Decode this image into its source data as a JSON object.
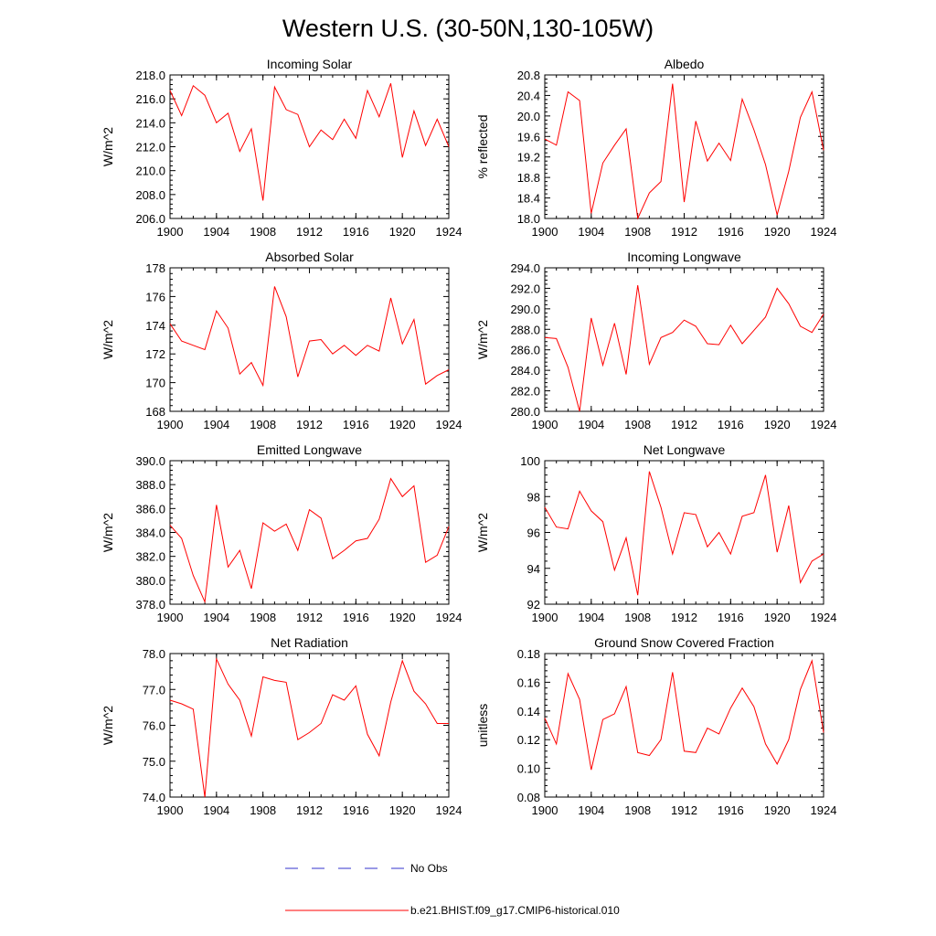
{
  "figure": {
    "title": "Western U.S. (30-50N,130-105W)",
    "legend": [
      {
        "label": "No Obs",
        "color": "#3333cc",
        "style": "dashed"
      },
      {
        "label": "b.e21.BHIST.f09_g17.CMIP6-historical.010",
        "color": "#ff0000",
        "style": "solid"
      }
    ]
  },
  "chart_data": [
    {
      "type": "line",
      "title": "Incoming Solar",
      "ylabel": "W/m^2",
      "xlim": [
        1900,
        1924
      ],
      "ylim": [
        206,
        218
      ],
      "yticks": [
        "206.0",
        "208.0",
        "210.0",
        "212.0",
        "214.0",
        "216.0",
        "218.0"
      ],
      "xticks": [
        "1900",
        "1904",
        "1908",
        "1912",
        "1916",
        "1920",
        "1924"
      ],
      "color": "#ff0000",
      "x": [
        1900,
        1901,
        1902,
        1903,
        1904,
        1905,
        1906,
        1907,
        1908,
        1909,
        1910,
        1911,
        1912,
        1913,
        1914,
        1915,
        1916,
        1917,
        1918,
        1919,
        1920,
        1921,
        1922,
        1923,
        1924
      ],
      "y": [
        216.7,
        214.6,
        217.1,
        216.3,
        214.0,
        214.8,
        211.6,
        213.5,
        207.5,
        217.0,
        215.1,
        214.7,
        212.0,
        213.4,
        212.6,
        214.3,
        212.7,
        216.7,
        214.5,
        217.3,
        211.1,
        215.0,
        212.1,
        214.3,
        212.0
      ]
    },
    {
      "type": "line",
      "title": "Albedo",
      "ylabel": "% reflected",
      "xlim": [
        1900,
        1924
      ],
      "ylim": [
        18.0,
        20.8
      ],
      "yticks": [
        "18.0",
        "18.4",
        "18.8",
        "19.2",
        "19.6",
        "20.0",
        "20.4",
        "20.8"
      ],
      "xticks": [
        "1900",
        "1904",
        "1908",
        "1912",
        "1916",
        "1920",
        "1924"
      ],
      "color": "#ff0000",
      "x": [
        1900,
        1901,
        1902,
        1903,
        1904,
        1905,
        1906,
        1907,
        1908,
        1909,
        1910,
        1911,
        1912,
        1913,
        1914,
        1915,
        1916,
        1917,
        1918,
        1919,
        1920,
        1921,
        1922,
        1923,
        1924
      ],
      "y": [
        19.55,
        19.43,
        20.47,
        20.3,
        18.1,
        19.08,
        19.43,
        19.75,
        18.0,
        18.5,
        18.72,
        20.63,
        18.32,
        19.9,
        19.12,
        19.47,
        19.13,
        20.33,
        19.73,
        19.05,
        18.07,
        18.92,
        19.97,
        20.47,
        19.33
      ]
    },
    {
      "type": "line",
      "title": "Absorbed Solar",
      "ylabel": "W/m^2",
      "xlim": [
        1900,
        1924
      ],
      "ylim": [
        168,
        178
      ],
      "yticks": [
        "168",
        "170",
        "172",
        "174",
        "176",
        "178"
      ],
      "xticks": [
        "1900",
        "1904",
        "1908",
        "1912",
        "1916",
        "1920",
        "1924"
      ],
      "color": "#ff0000",
      "x": [
        1900,
        1901,
        1902,
        1903,
        1904,
        1905,
        1906,
        1907,
        1908,
        1909,
        1910,
        1911,
        1912,
        1913,
        1914,
        1915,
        1916,
        1917,
        1918,
        1919,
        1920,
        1921,
        1922,
        1923,
        1924
      ],
      "y": [
        174.1,
        172.9,
        172.6,
        172.3,
        175.0,
        173.8,
        170.6,
        171.4,
        169.8,
        176.7,
        174.6,
        170.4,
        172.9,
        173.0,
        172.0,
        172.6,
        171.9,
        172.6,
        172.2,
        175.9,
        172.7,
        174.4,
        169.9,
        170.5,
        170.9
      ]
    },
    {
      "type": "line",
      "title": "Incoming Longwave",
      "ylabel": "W/m^2",
      "xlim": [
        1900,
        1924
      ],
      "ylim": [
        280,
        294
      ],
      "yticks": [
        "280.0",
        "282.0",
        "284.0",
        "286.0",
        "288.0",
        "290.0",
        "292.0",
        "294.0"
      ],
      "xticks": [
        "1900",
        "1904",
        "1908",
        "1912",
        "1916",
        "1920",
        "1924"
      ],
      "color": "#ff0000",
      "x": [
        1900,
        1901,
        1902,
        1903,
        1904,
        1905,
        1906,
        1907,
        1908,
        1909,
        1910,
        1911,
        1912,
        1913,
        1914,
        1915,
        1916,
        1917,
        1918,
        1919,
        1920,
        1921,
        1922,
        1923,
        1924
      ],
      "y": [
        287.2,
        287.1,
        284.3,
        280.0,
        289.1,
        284.5,
        288.6,
        283.6,
        292.3,
        284.6,
        287.2,
        287.7,
        288.9,
        288.3,
        286.6,
        286.5,
        288.4,
        286.6,
        287.9,
        289.2,
        292.0,
        290.5,
        288.3,
        287.7,
        289.5
      ]
    },
    {
      "type": "line",
      "title": "Emitted Longwave",
      "ylabel": "W/m^2",
      "xlim": [
        1900,
        1924
      ],
      "ylim": [
        378,
        390
      ],
      "yticks": [
        "378.0",
        "380.0",
        "382.0",
        "384.0",
        "386.0",
        "388.0",
        "390.0"
      ],
      "xticks": [
        "1900",
        "1904",
        "1908",
        "1912",
        "1916",
        "1920",
        "1924"
      ],
      "color": "#ff0000",
      "x": [
        1900,
        1901,
        1902,
        1903,
        1904,
        1905,
        1906,
        1907,
        1908,
        1909,
        1910,
        1911,
        1912,
        1913,
        1914,
        1915,
        1916,
        1917,
        1918,
        1919,
        1920,
        1921,
        1922,
        1923,
        1924
      ],
      "y": [
        384.6,
        383.5,
        380.4,
        378.2,
        386.3,
        381.1,
        382.5,
        379.3,
        384.8,
        384.1,
        384.7,
        382.5,
        385.9,
        385.2,
        381.8,
        382.5,
        383.3,
        383.5,
        385.1,
        388.5,
        387.0,
        387.9,
        381.5,
        382.1,
        384.5
      ]
    },
    {
      "type": "line",
      "title": "Net Longwave",
      "ylabel": "W/m^2",
      "xlim": [
        1900,
        1924
      ],
      "ylim": [
        92,
        100
      ],
      "yticks": [
        "92",
        "94",
        "96",
        "98",
        "100"
      ],
      "xticks": [
        "1900",
        "1904",
        "1908",
        "1912",
        "1916",
        "1920",
        "1924"
      ],
      "color": "#ff0000",
      "x": [
        1900,
        1901,
        1902,
        1903,
        1904,
        1905,
        1906,
        1907,
        1908,
        1909,
        1910,
        1911,
        1912,
        1913,
        1914,
        1915,
        1916,
        1917,
        1918,
        1919,
        1920,
        1921,
        1922,
        1923,
        1924
      ],
      "y": [
        97.4,
        96.3,
        96.2,
        98.3,
        97.2,
        96.6,
        93.9,
        95.7,
        92.5,
        99.4,
        97.4,
        94.8,
        97.1,
        97.0,
        95.2,
        96.0,
        94.8,
        96.9,
        97.1,
        99.2,
        94.9,
        97.5,
        93.2,
        94.4,
        94.8
      ]
    },
    {
      "type": "line",
      "title": "Net Radiation",
      "ylabel": "W/m^2",
      "xlim": [
        1900,
        1924
      ],
      "ylim": [
        74,
        78
      ],
      "yticks": [
        "74.0",
        "75.0",
        "76.0",
        "77.0",
        "78.0"
      ],
      "xticks": [
        "1900",
        "1904",
        "1908",
        "1912",
        "1916",
        "1920",
        "1924"
      ],
      "color": "#ff0000",
      "x": [
        1900,
        1901,
        1902,
        1903,
        1904,
        1905,
        1906,
        1907,
        1908,
        1909,
        1910,
        1911,
        1912,
        1913,
        1914,
        1915,
        1916,
        1917,
        1918,
        1919,
        1920,
        1921,
        1922,
        1923,
        1924
      ],
      "y": [
        76.7,
        76.6,
        76.45,
        74.0,
        77.85,
        77.15,
        76.7,
        75.7,
        77.35,
        77.25,
        77.2,
        75.6,
        75.8,
        76.05,
        76.85,
        76.7,
        77.1,
        75.75,
        75.15,
        76.65,
        77.8,
        76.95,
        76.6,
        76.05,
        76.05
      ]
    },
    {
      "type": "line",
      "title": "Ground Snow Covered Fraction",
      "ylabel": "unitless",
      "xlim": [
        1900,
        1924
      ],
      "ylim": [
        0.08,
        0.18
      ],
      "yticks": [
        "0.08",
        "0.10",
        "0.12",
        "0.14",
        "0.16",
        "0.18"
      ],
      "xticks": [
        "1900",
        "1904",
        "1908",
        "1912",
        "1916",
        "1920",
        "1924"
      ],
      "color": "#ff0000",
      "x": [
        1900,
        1901,
        1902,
        1903,
        1904,
        1905,
        1906,
        1907,
        1908,
        1909,
        1910,
        1911,
        1912,
        1913,
        1914,
        1915,
        1916,
        1917,
        1918,
        1919,
        1920,
        1921,
        1922,
        1923,
        1924
      ],
      "y": [
        0.135,
        0.117,
        0.166,
        0.148,
        0.099,
        0.134,
        0.138,
        0.157,
        0.111,
        0.109,
        0.12,
        0.167,
        0.112,
        0.111,
        0.128,
        0.124,
        0.142,
        0.156,
        0.143,
        0.117,
        0.103,
        0.12,
        0.155,
        0.175,
        0.125
      ]
    }
  ]
}
